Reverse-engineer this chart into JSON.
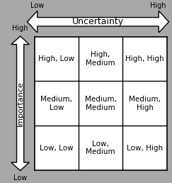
{
  "background_color": "#a8a8a8",
  "table_bg": "#ffffff",
  "grid_color": "#000000",
  "arrow_fc": "#ffffff",
  "arrow_ec": "#000000",
  "title_uncertainty": "Uncertainty",
  "label_low_left": "Low",
  "label_high_right": "High",
  "label_importance": "Importance",
  "label_high_top": "High",
  "label_low_bottom": "Low",
  "cells": [
    [
      "High, Low",
      "High,\nMedium",
      "High, High"
    ],
    [
      "Medium,\nLow",
      "Medium,\nMedium",
      "Medium,\nHigh"
    ],
    [
      "Low, Low",
      "Low,\nMedium",
      "Low, High"
    ]
  ],
  "cell_fontsize": 7.5,
  "axis_label_fontsize": 7,
  "uncertainty_label_fontsize": 9,
  "importance_label_fontsize": 8
}
